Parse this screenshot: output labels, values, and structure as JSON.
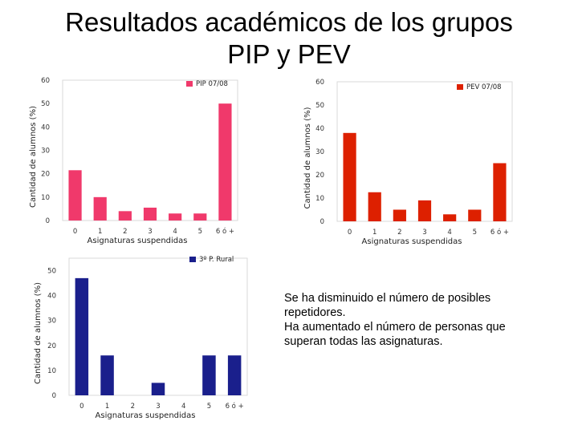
{
  "slide": {
    "title_line1": "Resultados académicos de los grupos",
    "title_line2": "PIP y PEV"
  },
  "note": {
    "lines": [
      "Se ha disminuido el número de posibles",
      "repetidores.",
      "Ha aumentado el número de personas que",
      "superan todas las asignaturas."
    ]
  },
  "chart_data": [
    {
      "type": "bar",
      "categories": [
        "0",
        "1",
        "2",
        "3",
        "4",
        "5",
        "6 ó +"
      ],
      "series": [
        {
          "name": "PIP 07/08",
          "values": [
            21.5,
            10,
            4,
            5.5,
            3,
            3,
            50
          ],
          "color": "#f0396b"
        }
      ],
      "xlabel": "Asignaturas suspendidas",
      "ylabel": "Cantidad de alumnos (%)",
      "ylim": [
        0,
        60
      ],
      "yticks": [
        "0",
        "10",
        "20",
        "30",
        "40",
        "50",
        "60"
      ],
      "legend": "top-right",
      "grid": false
    },
    {
      "type": "bar",
      "categories": [
        "0",
        "1",
        "2",
        "3",
        "4",
        "5",
        "6 ó +"
      ],
      "series": [
        {
          "name": "PEV 07/08",
          "values": [
            38,
            12.5,
            5,
            9,
            3,
            5,
            25
          ],
          "color": "#dd2000"
        }
      ],
      "xlabel": "Asignaturas suspendidas",
      "ylabel": "Cantidad de alumnos (%)",
      "ylim": [
        0,
        60
      ],
      "yticks": [
        "0",
        "10",
        "20",
        "30",
        "40",
        "50",
        "60"
      ],
      "legend": "top-right",
      "grid": false
    },
    {
      "type": "bar",
      "categories": [
        "0",
        "1",
        "2",
        "3",
        "4",
        "5",
        "6 ó +"
      ],
      "series": [
        {
          "name": "3º P. Rural",
          "values": [
            47,
            16,
            0,
            5,
            0,
            16,
            16
          ],
          "color": "#1a1f8c"
        }
      ],
      "xlabel": "Asignaturas suspendidas",
      "ylabel": "Cantidad de alumnos (%)",
      "ylim": [
        0,
        55
      ],
      "yticks": [
        "0",
        "10",
        "20",
        "30",
        "40",
        "50"
      ],
      "legend": "top-right",
      "grid": false
    }
  ]
}
